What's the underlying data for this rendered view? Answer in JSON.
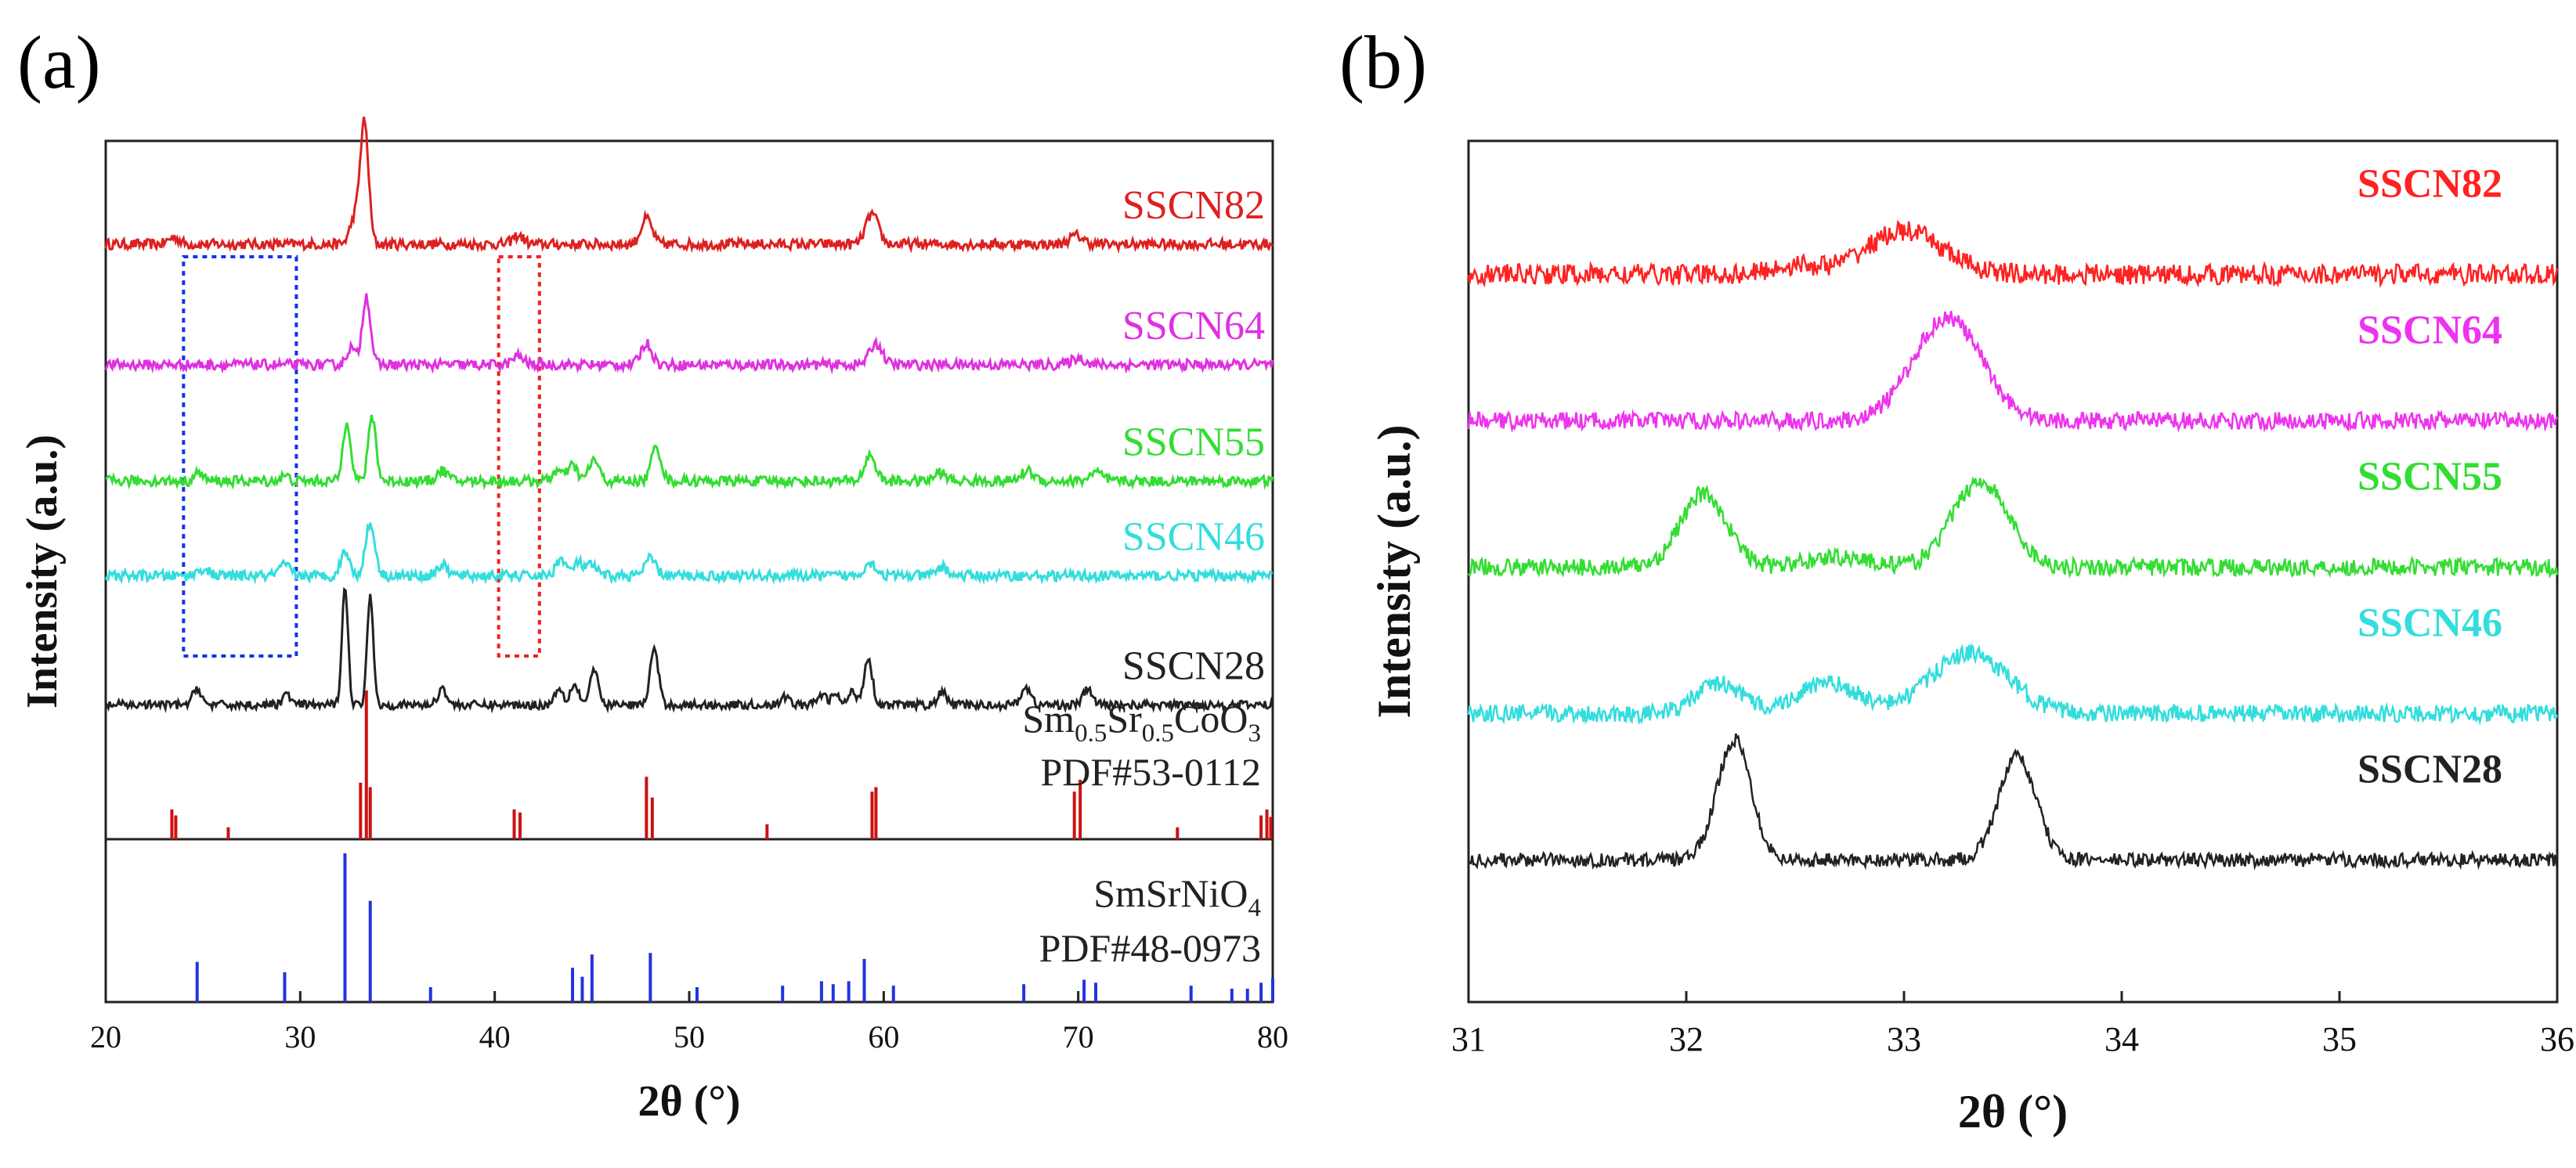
{
  "chart_data": [
    {
      "panel_label": "(a)",
      "type": "line",
      "xlabel": "2θ (°)",
      "ylabel": "Intensity (a.u.)",
      "xlim": [
        20,
        80
      ],
      "xticks": [
        20,
        30,
        40,
        50,
        60,
        70,
        80
      ],
      "series": [
        {
          "name": "SSCN82",
          "color": "#dd2020",
          "baseline": 0.88,
          "noise": 0.006,
          "peaks": [
            [
              33.3,
              0.14,
              0.3
            ],
            [
              32.8,
              0.03,
              0.35
            ],
            [
              41.2,
              0.01,
              0.4
            ],
            [
              47.8,
              0.03,
              0.4
            ],
            [
              59.4,
              0.035,
              0.45
            ],
            [
              69.9,
              0.01,
              0.5
            ],
            [
              23.5,
              0.008,
              0.4
            ]
          ]
        },
        {
          "name": "SSCN64",
          "color": "#e030e0",
          "baseline": 0.74,
          "noise": 0.006,
          "peaks": [
            [
              33.4,
              0.08,
              0.3
            ],
            [
              32.6,
              0.02,
              0.3
            ],
            [
              41.2,
              0.01,
              0.4
            ],
            [
              47.8,
              0.025,
              0.4
            ],
            [
              59.6,
              0.025,
              0.45
            ],
            [
              70.0,
              0.008,
              0.5
            ]
          ]
        },
        {
          "name": "SSCN55",
          "color": "#33dd33",
          "baseline": 0.605,
          "noise": 0.006,
          "peaks": [
            [
              32.4,
              0.07,
              0.28
            ],
            [
              33.7,
              0.075,
              0.28
            ],
            [
              37.3,
              0.012,
              0.4
            ],
            [
              43.2,
              0.012,
              0.35
            ],
            [
              44.0,
              0.018,
              0.35
            ],
            [
              45.1,
              0.025,
              0.35
            ],
            [
              48.3,
              0.04,
              0.35
            ],
            [
              59.3,
              0.03,
              0.4
            ],
            [
              62.9,
              0.01,
              0.4
            ],
            [
              67.4,
              0.012,
              0.45
            ],
            [
              70.9,
              0.01,
              0.45
            ],
            [
              24.8,
              0.01,
              0.3
            ],
            [
              29.2,
              0.006,
              0.3
            ]
          ]
        },
        {
          "name": "SSCN46",
          "color": "#33dddd",
          "baseline": 0.495,
          "noise": 0.006,
          "peaks": [
            [
              32.3,
              0.03,
              0.3
            ],
            [
              33.6,
              0.06,
              0.35
            ],
            [
              37.3,
              0.012,
              0.4
            ],
            [
              43.4,
              0.02,
              0.35
            ],
            [
              44.3,
              0.015,
              0.35
            ],
            [
              45.0,
              0.012,
              0.35
            ],
            [
              48.0,
              0.02,
              0.4
            ],
            [
              59.3,
              0.015,
              0.45
            ],
            [
              63.0,
              0.01,
              0.4
            ],
            [
              29.2,
              0.012,
              0.4
            ],
            [
              25.0,
              0.008,
              0.4
            ]
          ]
        },
        {
          "name": "SSCN28",
          "color": "#222222",
          "baseline": 0.345,
          "noise": 0.005,
          "peaks": [
            [
              32.3,
              0.14,
              0.22
            ],
            [
              33.6,
              0.13,
              0.22
            ],
            [
              24.7,
              0.02,
              0.3
            ],
            [
              29.3,
              0.012,
              0.3
            ],
            [
              37.3,
              0.02,
              0.3
            ],
            [
              43.3,
              0.02,
              0.3
            ],
            [
              44.1,
              0.025,
              0.3
            ],
            [
              45.1,
              0.04,
              0.3
            ],
            [
              48.2,
              0.065,
              0.3
            ],
            [
              55.0,
              0.01,
              0.3
            ],
            [
              56.8,
              0.012,
              0.3
            ],
            [
              57.5,
              0.012,
              0.3
            ],
            [
              58.4,
              0.015,
              0.3
            ],
            [
              59.2,
              0.055,
              0.3
            ],
            [
              63.0,
              0.015,
              0.3
            ],
            [
              67.3,
              0.02,
              0.35
            ],
            [
              70.5,
              0.018,
              0.35
            ]
          ]
        }
      ],
      "reference_patterns": [
        {
          "name_parts": [
            {
              "t": "Sm"
            },
            {
              "t": "0.5",
              "sub": true
            },
            {
              "t": "Sr"
            },
            {
              "t": "0.5",
              "sub": true
            },
            {
              "t": "CoO"
            },
            {
              "t": "3",
              "sub": true
            }
          ],
          "pdf": "PDF#53-0112",
          "color": "#cc1111",
          "lines": [
            [
              23.4,
              0.2
            ],
            [
              23.6,
              0.16
            ],
            [
              26.3,
              0.08
            ],
            [
              33.1,
              0.38
            ],
            [
              33.4,
              1.0
            ],
            [
              33.6,
              0.35
            ],
            [
              41.0,
              0.2
            ],
            [
              41.3,
              0.18
            ],
            [
              47.8,
              0.42
            ],
            [
              48.1,
              0.28
            ],
            [
              54.0,
              0.1
            ],
            [
              59.4,
              0.32
            ],
            [
              59.6,
              0.35
            ],
            [
              69.8,
              0.32
            ],
            [
              70.1,
              0.4
            ],
            [
              75.1,
              0.08
            ],
            [
              79.4,
              0.16
            ],
            [
              79.7,
              0.2
            ],
            [
              79.9,
              0.15
            ]
          ]
        },
        {
          "name_parts": [
            {
              "t": "SmSrNiO"
            },
            {
              "t": "4",
              "sub": true
            }
          ],
          "pdf": "PDF#48-0973",
          "color": "#2233dd",
          "lines": [
            [
              24.7,
              0.27
            ],
            [
              29.2,
              0.2
            ],
            [
              32.3,
              1.0
            ],
            [
              33.6,
              0.68
            ],
            [
              36.7,
              0.1
            ],
            [
              44.0,
              0.23
            ],
            [
              44.5,
              0.17
            ],
            [
              45.0,
              0.32
            ],
            [
              48.0,
              0.33
            ],
            [
              50.4,
              0.1
            ],
            [
              54.8,
              0.11
            ],
            [
              56.8,
              0.14
            ],
            [
              57.4,
              0.12
            ],
            [
              58.2,
              0.14
            ],
            [
              59.0,
              0.29
            ],
            [
              60.5,
              0.11
            ],
            [
              67.2,
              0.12
            ],
            [
              70.3,
              0.15
            ],
            [
              70.9,
              0.13
            ],
            [
              75.8,
              0.11
            ],
            [
              77.9,
              0.09
            ],
            [
              78.7,
              0.09
            ],
            [
              79.4,
              0.13
            ],
            [
              80.0,
              0.16
            ]
          ]
        }
      ],
      "highlight_boxes": [
        {
          "x_range": [
            24,
            29.8
          ],
          "color": "#1133ee",
          "style": "dotted"
        },
        {
          "x_range": [
            40.2,
            42.3
          ],
          "color": "#ee2222",
          "style": "dotted"
        }
      ]
    },
    {
      "panel_label": "(b)",
      "type": "line",
      "xlabel": "2θ (°)",
      "ylabel": "Intensity (a.u.)",
      "xlim": [
        31,
        36
      ],
      "xticks": [
        31,
        32,
        33,
        34,
        35,
        36
      ],
      "series": [
        {
          "name": "SSCN82",
          "color": "#ff2222",
          "baseline": 0.845,
          "noise": 0.012,
          "peaks": [
            [
              33.0,
              0.05,
              0.25
            ],
            [
              32.5,
              0.01,
              0.15
            ]
          ]
        },
        {
          "name": "SSCN64",
          "color": "#ee33ee",
          "baseline": 0.675,
          "noise": 0.01,
          "peaks": [
            [
              33.2,
              0.12,
              0.22
            ]
          ]
        },
        {
          "name": "SSCN55",
          "color": "#33dd33",
          "baseline": 0.505,
          "noise": 0.01,
          "peaks": [
            [
              32.08,
              0.085,
              0.15
            ],
            [
              33.35,
              0.1,
              0.18
            ],
            [
              32.7,
              0.012,
              0.2
            ]
          ]
        },
        {
          "name": "SSCN46",
          "color": "#33dddd",
          "baseline": 0.335,
          "noise": 0.01,
          "peaks": [
            [
              32.15,
              0.035,
              0.15
            ],
            [
              32.65,
              0.035,
              0.2
            ],
            [
              33.3,
              0.07,
              0.25
            ]
          ]
        },
        {
          "name": "SSCN28",
          "color": "#222222",
          "baseline": 0.165,
          "noise": 0.008,
          "peaks": [
            [
              32.22,
              0.14,
              0.11
            ],
            [
              33.52,
              0.12,
              0.12
            ]
          ]
        }
      ]
    }
  ]
}
